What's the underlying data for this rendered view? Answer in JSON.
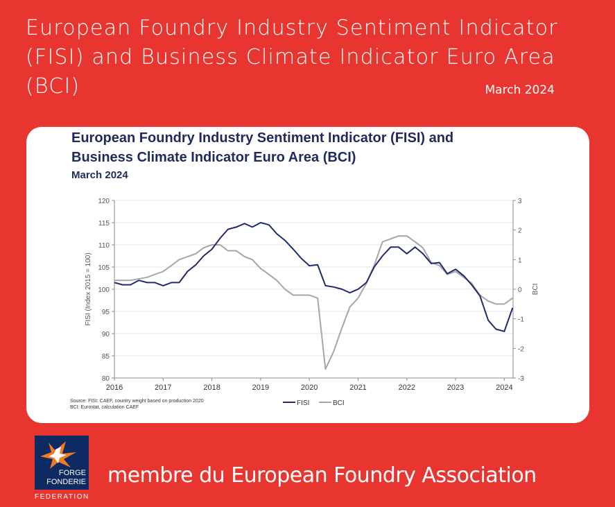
{
  "header": {
    "title": "European Foundry Industry Sentiment Indicator (FISI) and Business Climate Indicator Euro Area (BCI)",
    "date": "March 2024"
  },
  "footer": {
    "logo_line1": "FORGE",
    "logo_line2": "FONDERIE",
    "logo_line3": "FEDERATION",
    "text": "membre du European Foundry Association"
  },
  "chart_data": {
    "type": "line",
    "title_line1": "European Foundry Industry Sentiment Indicator (FISI) and",
    "title_line2": "Business Climate Indicator Euro Area (BCI)",
    "subtitle": "March 2024",
    "ylabel": "FISI (Index 2015 = 100)",
    "y2label": "BCI",
    "source_line1": "Source: FISI: CAEF, country weight based on production 2020",
    "source_line2": "BCI: Eurostat, calculation CAEF",
    "x": [
      2016,
      2016.17,
      2016.33,
      2016.5,
      2016.67,
      2016.83,
      2017,
      2017.17,
      2017.33,
      2017.5,
      2017.67,
      2017.83,
      2018,
      2018.17,
      2018.33,
      2018.5,
      2018.67,
      2018.83,
      2019,
      2019.17,
      2019.33,
      2019.5,
      2019.67,
      2019.83,
      2020,
      2020.17,
      2020.33,
      2020.5,
      2020.67,
      2020.83,
      2021,
      2021.17,
      2021.33,
      2021.5,
      2021.67,
      2021.83,
      2022,
      2022.17,
      2022.33,
      2022.5,
      2022.67,
      2022.83,
      2023,
      2023.17,
      2023.33,
      2023.5,
      2023.67,
      2023.83,
      2024,
      2024.17
    ],
    "series": [
      {
        "name": "FISI",
        "color": "#1f2a6b",
        "axis": "y",
        "values": [
          101.5,
          101,
          101,
          102,
          101.5,
          101.5,
          100.8,
          101.5,
          101.5,
          104,
          105.5,
          107.5,
          109,
          111.5,
          113.5,
          114,
          114.8,
          114,
          115,
          114.5,
          112.5,
          111,
          109,
          107,
          105.3,
          105.5,
          100.8,
          100.5,
          100,
          99.2,
          100,
          101.5,
          105,
          107.5,
          109.5,
          109.5,
          108,
          109.5,
          108,
          105.8,
          106,
          103.5,
          104.5,
          103,
          101,
          98.5,
          93,
          91,
          90.5,
          95.8
        ]
      },
      {
        "name": "BCI",
        "color": "#a6a6a6",
        "axis": "y2",
        "values": [
          0.3,
          0.3,
          0.3,
          0.35,
          0.4,
          0.5,
          0.6,
          0.8,
          1,
          1.1,
          1.2,
          1.4,
          1.5,
          1.5,
          1.3,
          1.3,
          1.1,
          1,
          0.7,
          0.5,
          0.3,
          0,
          -0.2,
          -0.2,
          -0.2,
          -0.3,
          -2.7,
          -2.1,
          -1.3,
          -0.6,
          -0.3,
          0.2,
          0.8,
          1.6,
          1.7,
          1.8,
          1.8,
          1.6,
          1.4,
          0.9,
          0.8,
          0.5,
          0.6,
          0.4,
          0.2,
          -0.2,
          -0.4,
          -0.5,
          -0.5,
          -0.3
        ]
      }
    ],
    "xlim": [
      2016,
      2024.18
    ],
    "xticks": [
      2016,
      2017,
      2018,
      2019,
      2020,
      2021,
      2022,
      2023,
      2024
    ],
    "ylim": [
      80,
      120
    ],
    "yticks": [
      80,
      85,
      90,
      95,
      100,
      105,
      110,
      115,
      120
    ],
    "y2lim": [
      -3,
      3
    ],
    "y2ticks": [
      -3,
      -2,
      -1,
      0,
      1,
      2,
      3
    ],
    "grid": true
  }
}
